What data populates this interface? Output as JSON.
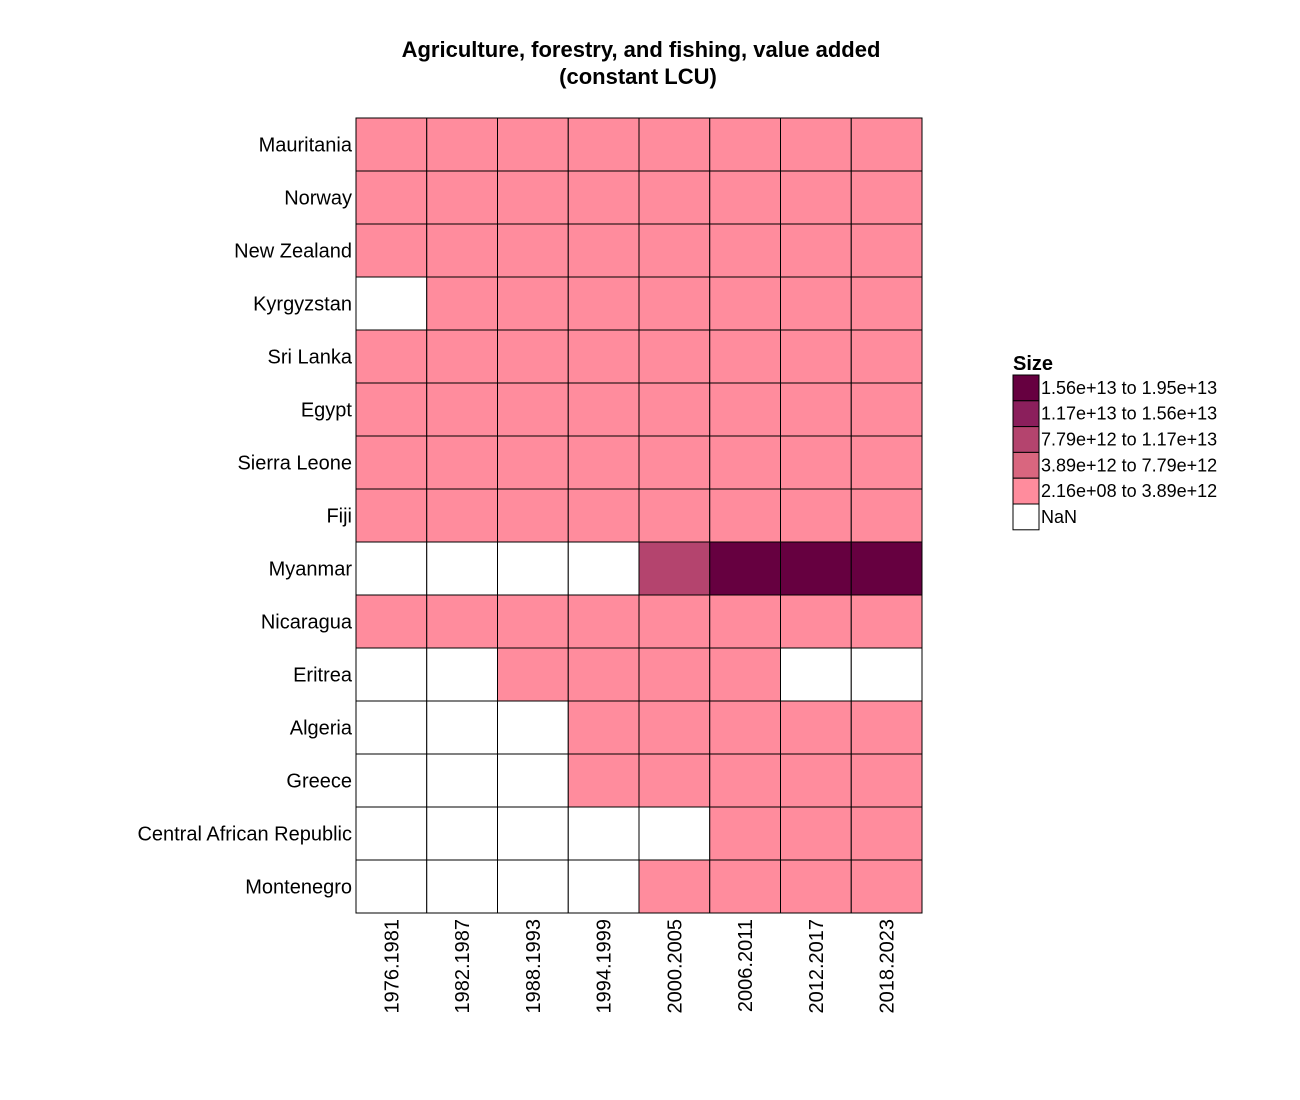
{
  "chart_data": {
    "type": "heatmap",
    "title_lines": [
      "Agriculture, forestry, and fishing, value added",
      "(constant LCU)"
    ],
    "legend_title": "Size",
    "bins": [
      {
        "label": "1.56e+13 to 1.95e+13",
        "color": "#660040"
      },
      {
        "label": "1.17e+13 to 1.56e+13",
        "color": "#8b1f5c"
      },
      {
        "label": "7.79e+12 to 1.17e+13",
        "color": "#b4446e"
      },
      {
        "label": "3.89e+12 to 7.79e+12",
        "color": "#d9667f"
      },
      {
        "label": "2.16e+08 to 3.89e+12",
        "color": "#ff8c9d"
      },
      {
        "label": "NaN",
        "color": "#ffffff"
      }
    ],
    "columns": [
      "1976.1981",
      "1982.1987",
      "1988.1993",
      "1994.1999",
      "2000.2005",
      "2006.2011",
      "2012.2017",
      "2018.2023"
    ],
    "rows": [
      "Mauritania",
      "Norway",
      "New Zealand",
      "Kyrgyzstan",
      "Sri Lanka",
      "Egypt",
      "Sierra Leone",
      "Fiji",
      "Myanmar",
      "Nicaragua",
      "Eritrea",
      "Algeria",
      "Greece",
      "Central African Republic",
      "Montenegro"
    ],
    "cell_bins": [
      [
        4,
        4,
        4,
        4,
        4,
        4,
        4,
        4
      ],
      [
        4,
        4,
        4,
        4,
        4,
        4,
        4,
        4
      ],
      [
        4,
        4,
        4,
        4,
        4,
        4,
        4,
        4
      ],
      [
        5,
        4,
        4,
        4,
        4,
        4,
        4,
        4
      ],
      [
        4,
        4,
        4,
        4,
        4,
        4,
        4,
        4
      ],
      [
        4,
        4,
        4,
        4,
        4,
        4,
        4,
        4
      ],
      [
        4,
        4,
        4,
        4,
        4,
        4,
        4,
        4
      ],
      [
        4,
        4,
        4,
        4,
        4,
        4,
        4,
        4
      ],
      [
        5,
        5,
        5,
        5,
        2,
        0,
        0,
        0
      ],
      [
        4,
        4,
        4,
        4,
        4,
        4,
        4,
        4
      ],
      [
        5,
        5,
        4,
        4,
        4,
        4,
        5,
        5
      ],
      [
        5,
        5,
        5,
        4,
        4,
        4,
        4,
        4
      ],
      [
        5,
        5,
        5,
        4,
        4,
        4,
        4,
        4
      ],
      [
        5,
        5,
        5,
        5,
        5,
        4,
        4,
        4
      ],
      [
        5,
        5,
        5,
        5,
        4,
        4,
        4,
        4
      ]
    ]
  }
}
